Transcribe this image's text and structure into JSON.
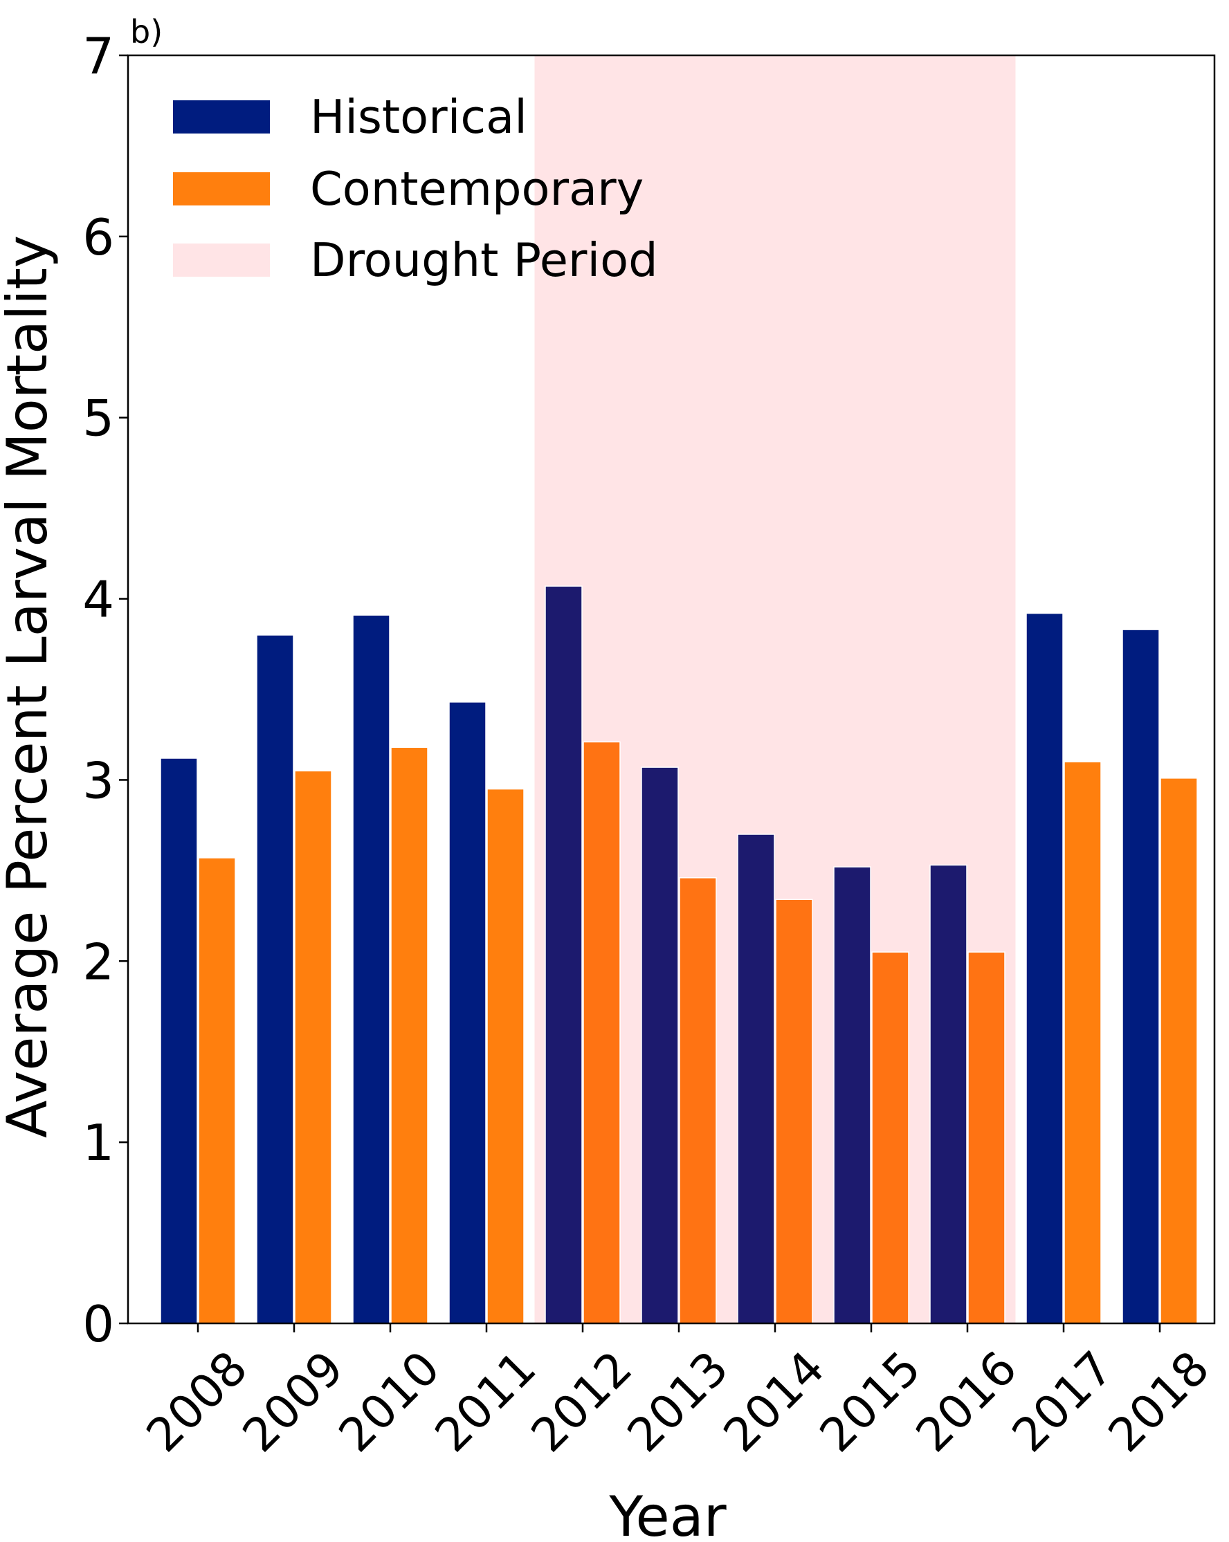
{
  "chart_data": {
    "type": "bar",
    "panel_label": "b)",
    "title": "",
    "xlabel": "Year",
    "ylabel": "Average Percent Larval Mortality",
    "categories": [
      "2008",
      "2009",
      "2010",
      "2011",
      "2012",
      "2013",
      "2014",
      "2015",
      "2016",
      "2017",
      "2018"
    ],
    "series": [
      {
        "name": "Historical",
        "color": "#001c7f",
        "drought_color": "#1c1a6e",
        "values": [
          3.12,
          3.8,
          3.91,
          3.43,
          4.07,
          3.07,
          2.7,
          2.52,
          2.53,
          3.92,
          3.83
        ]
      },
      {
        "name": "Contemporary",
        "color": "#ff7f0e",
        "drought_color": "#ff7313",
        "values": [
          2.57,
          3.05,
          3.18,
          2.95,
          3.21,
          2.46,
          2.34,
          2.05,
          2.05,
          3.1,
          3.01
        ]
      }
    ],
    "shaded_region": {
      "name": "Drought Period",
      "color": "#ffe4e6",
      "from": "2012",
      "to": "2016"
    },
    "ylim": [
      0,
      7
    ],
    "yticks": [
      0,
      1,
      2,
      3,
      4,
      5,
      6,
      7
    ],
    "xtick_rotation": 45,
    "grid": false,
    "legend_position": "top-left"
  }
}
